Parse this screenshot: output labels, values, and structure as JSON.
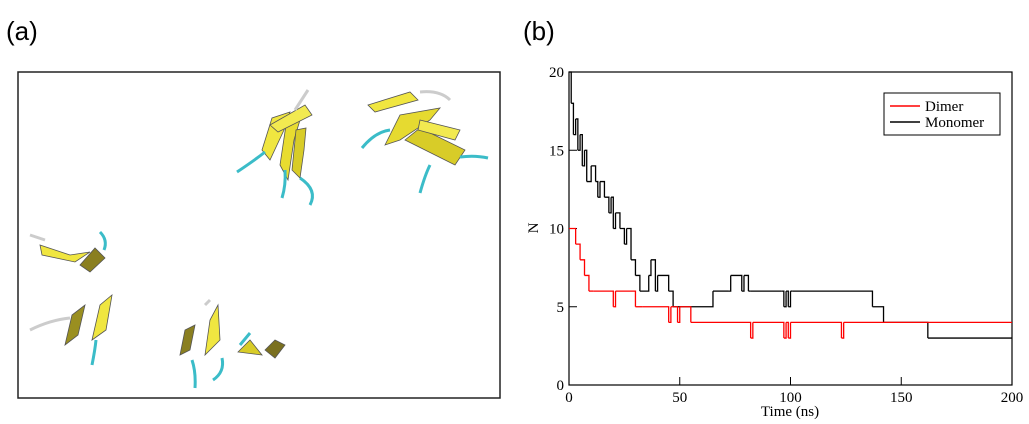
{
  "panel_labels": [
    "(a)",
    "(b)"
  ],
  "chart_data": {
    "type": "step",
    "xlabel": "Time (ns)",
    "ylabel": "N",
    "xlim": [
      0,
      200
    ],
    "xticks": [
      0,
      50,
      100,
      150,
      200
    ],
    "ylim": [
      0,
      20
    ],
    "yticks": [
      0,
      5,
      10,
      15,
      20
    ],
    "legend": "upper right",
    "series": [
      {
        "name": "Dimer",
        "color": "#ff0000",
        "x": [
          0,
          3,
          5,
          7,
          9,
          11,
          20,
          21,
          30,
          33,
          45,
          46,
          49,
          50,
          55,
          82,
          83,
          97,
          98,
          99,
          100,
          123,
          124,
          200
        ],
        "values": [
          10,
          9,
          8,
          7,
          6,
          6,
          5,
          6,
          5,
          5,
          4,
          5,
          4,
          5,
          4,
          3,
          4,
          3,
          4,
          3,
          4,
          3,
          4,
          4
        ]
      },
      {
        "name": "Monomer",
        "color": "#000000",
        "x": [
          0,
          1,
          2,
          3,
          4,
          5,
          6,
          7,
          8,
          10,
          12,
          13,
          14,
          16,
          18,
          19,
          20,
          21,
          23,
          25,
          26,
          28,
          30,
          32,
          36,
          37,
          39,
          40,
          45,
          47,
          65,
          72,
          73,
          78,
          79,
          81,
          82,
          96,
          97,
          98,
          99,
          100,
          101,
          137,
          142,
          162,
          200
        ],
        "values": [
          20,
          18,
          16,
          17,
          15,
          16,
          14,
          15,
          13,
          14,
          13,
          12,
          13,
          12,
          11,
          12,
          10,
          11,
          10,
          9,
          10,
          8,
          7,
          6,
          7,
          8,
          6,
          7,
          6,
          5,
          6,
          6,
          7,
          6,
          7,
          6,
          6,
          6,
          5,
          6,
          5,
          6,
          6,
          5,
          4,
          3,
          3
        ]
      }
    ]
  }
}
